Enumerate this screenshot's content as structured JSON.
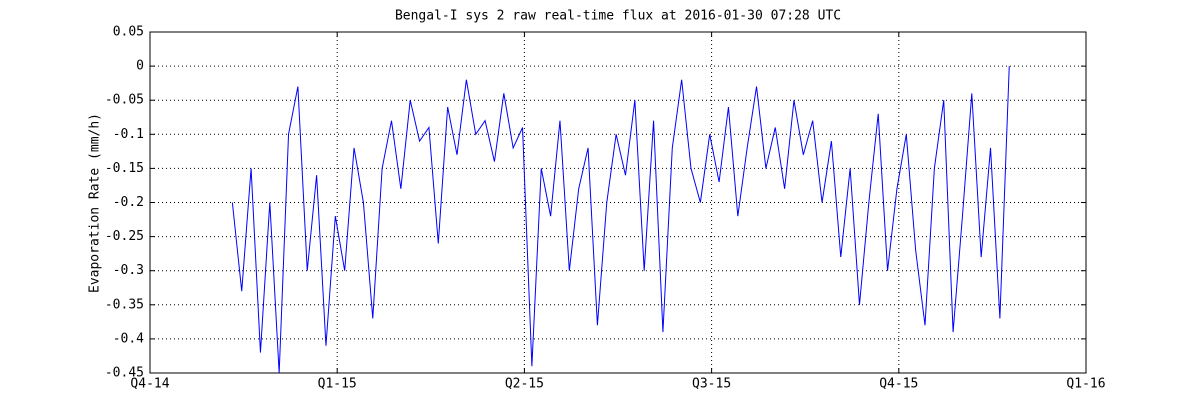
{
  "chart_data": {
    "type": "line",
    "title": "Bengal-I sys 2 raw real-time flux at 2016-01-30 07:28 UTC",
    "y_label": "Evaporation Rate (mm/h)",
    "xlim": [
      0,
      5
    ],
    "xticks": [
      {
        "value": 0,
        "label": "Q4-14"
      },
      {
        "value": 1,
        "label": "Q1-15"
      },
      {
        "value": 2,
        "label": "Q2-15"
      },
      {
        "value": 3,
        "label": "Q3-15"
      },
      {
        "value": 4,
        "label": "Q4-15"
      },
      {
        "value": 5,
        "label": "Q1-16"
      }
    ],
    "ylim": [
      -0.45,
      0.05
    ],
    "yticks": [
      0.05,
      0,
      -0.05,
      -0.1,
      -0.15,
      -0.2,
      -0.25,
      -0.3,
      -0.35,
      -0.4,
      -0.45
    ],
    "grid": true,
    "series": [
      {
        "color": "#0000ff",
        "x": [
          0.44,
          0.49,
          0.54,
          0.59,
          0.64,
          0.69,
          0.74,
          0.79,
          0.84,
          0.89,
          0.94,
          0.99,
          1.04,
          1.09,
          1.14,
          1.19,
          1.24,
          1.29,
          1.34,
          1.39,
          1.44,
          1.49,
          1.54,
          1.59,
          1.64,
          1.69,
          1.74,
          1.79,
          1.84,
          1.89,
          1.94,
          1.99,
          2.04,
          2.09,
          2.14,
          2.19,
          2.24,
          2.29,
          2.34,
          2.39,
          2.44,
          2.49,
          2.54,
          2.59,
          2.64,
          2.69,
          2.74,
          2.79,
          2.84,
          2.89,
          2.94,
          2.99,
          3.04,
          3.09,
          3.14,
          3.19,
          3.24,
          3.29,
          3.34,
          3.39,
          3.44,
          3.49,
          3.54,
          3.59,
          3.64,
          3.69,
          3.74,
          3.79,
          3.84,
          3.89,
          3.94,
          3.99,
          4.04,
          4.09,
          4.14,
          4.19,
          4.24,
          4.29,
          4.34,
          4.39,
          4.44,
          4.49,
          4.54,
          4.59
        ],
        "values": [
          -0.2,
          -0.33,
          -0.15,
          -0.42,
          -0.2,
          -0.45,
          -0.1,
          -0.03,
          -0.3,
          -0.16,
          -0.41,
          -0.22,
          -0.3,
          -0.12,
          -0.2,
          -0.37,
          -0.15,
          -0.08,
          -0.18,
          -0.05,
          -0.11,
          -0.09,
          -0.26,
          -0.06,
          -0.13,
          -0.02,
          -0.1,
          -0.08,
          -0.14,
          -0.04,
          -0.12,
          -0.09,
          -0.44,
          -0.15,
          -0.22,
          -0.08,
          -0.3,
          -0.18,
          -0.12,
          -0.38,
          -0.2,
          -0.1,
          -0.16,
          -0.05,
          -0.3,
          -0.08,
          -0.39,
          -0.12,
          -0.02,
          -0.15,
          -0.2,
          -0.1,
          -0.17,
          -0.06,
          -0.22,
          -0.12,
          -0.03,
          -0.15,
          -0.09,
          -0.18,
          -0.05,
          -0.13,
          -0.08,
          -0.2,
          -0.11,
          -0.28,
          -0.15,
          -0.35,
          -0.2,
          -0.07,
          -0.3,
          -0.18,
          -0.1,
          -0.27,
          -0.38,
          -0.15,
          -0.05,
          -0.39,
          -0.22,
          -0.04,
          -0.28,
          -0.12,
          -0.37,
          0
        ]
      }
    ]
  }
}
